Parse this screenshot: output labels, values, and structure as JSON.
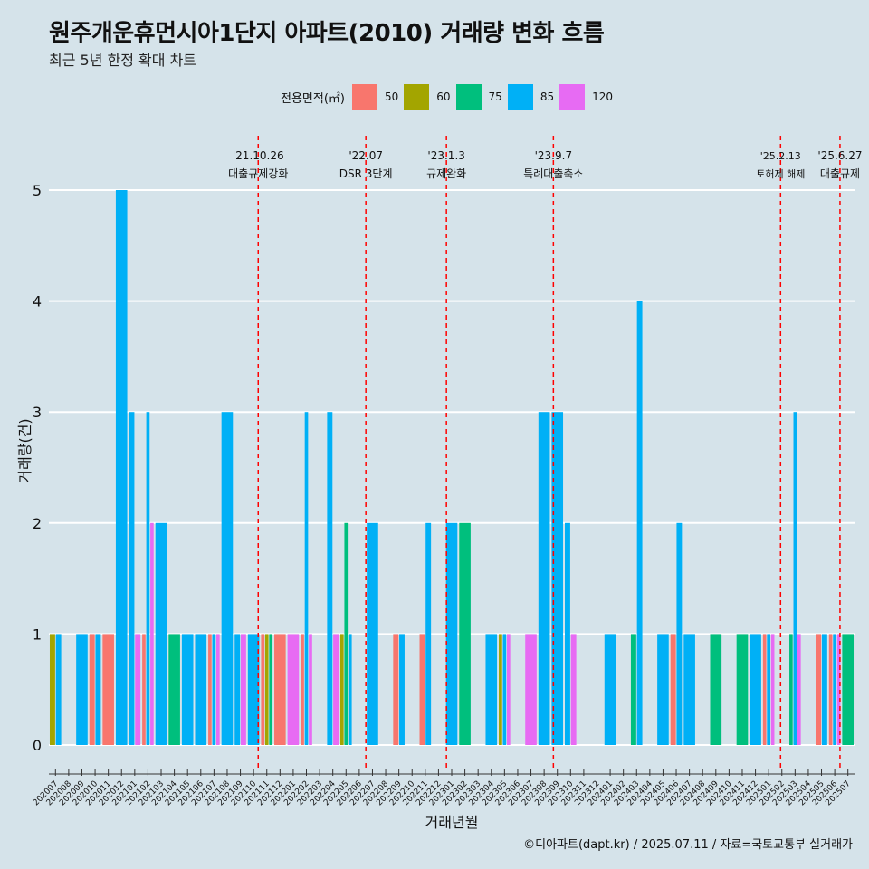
{
  "title": "원주개운휴먼시아1단지 아파트(2010) 거래량 변화 흐름",
  "subtitle": "최근 5년 한정 확대 차트",
  "caption": "©디아파트(dapt.kr) / 2025.07.11 / 자료=국토교통부 실거래가",
  "legend": {
    "title": "전용면적(㎡)",
    "items": [
      {
        "label": "50",
        "color": "#f8766d"
      },
      {
        "label": "60",
        "color": "#a3a500"
      },
      {
        "label": "75",
        "color": "#00bf7d"
      },
      {
        "label": "85",
        "color": "#00b0f6"
      },
      {
        "label": "120",
        "color": "#e76bf3"
      }
    ]
  },
  "chart_data": {
    "type": "bar",
    "title": "원주개운휴먼시아1단지 아파트(2010) 거래량 변화 흐름",
    "xlabel": "거래년월",
    "ylabel": "거래량(건)",
    "ylim": [
      0,
      5
    ],
    "yticks": [
      0,
      1,
      2,
      3,
      4,
      5
    ],
    "categories": [
      "202007",
      "202008",
      "202009",
      "202010",
      "202011",
      "202012",
      "202101",
      "202102",
      "202103",
      "202104",
      "202105",
      "202106",
      "202107",
      "202108",
      "202109",
      "202110",
      "202111",
      "202112",
      "202201",
      "202202",
      "202203",
      "202204",
      "202205",
      "202206",
      "202207",
      "202208",
      "202209",
      "202210",
      "202211",
      "202212",
      "202301",
      "202302",
      "202303",
      "202304",
      "202305",
      "202306",
      "202307",
      "202308",
      "202309",
      "202310",
      "202311",
      "202312",
      "202401",
      "202402",
      "202403",
      "202404",
      "202405",
      "202406",
      "202407",
      "202408",
      "202409",
      "202410",
      "202411",
      "202412",
      "202501",
      "202502",
      "202503",
      "202504",
      "202505",
      "202506",
      "202507"
    ],
    "bars": [
      {
        "month": "202007",
        "values": [
          {
            "area": "60",
            "count": 1
          },
          {
            "area": "85",
            "count": 1
          }
        ]
      },
      {
        "month": "202009",
        "values": [
          {
            "area": "85",
            "count": 1
          }
        ]
      },
      {
        "month": "202010",
        "values": [
          {
            "area": "50",
            "count": 1
          },
          {
            "area": "85",
            "count": 1
          }
        ]
      },
      {
        "month": "202011",
        "values": [
          {
            "area": "50",
            "count": 1
          }
        ]
      },
      {
        "month": "202012",
        "values": [
          {
            "area": "85",
            "count": 5
          }
        ]
      },
      {
        "month": "202101",
        "values": [
          {
            "area": "85",
            "count": 3
          },
          {
            "area": "120",
            "count": 1
          }
        ]
      },
      {
        "month": "202102",
        "values": [
          {
            "area": "50",
            "count": 1
          },
          {
            "area": "85",
            "count": 3
          },
          {
            "area": "120",
            "count": 2
          }
        ]
      },
      {
        "month": "202103",
        "values": [
          {
            "area": "85",
            "count": 2
          }
        ]
      },
      {
        "month": "202104",
        "values": [
          {
            "area": "75",
            "count": 1
          }
        ]
      },
      {
        "month": "202105",
        "values": [
          {
            "area": "85",
            "count": 1
          }
        ]
      },
      {
        "month": "202106",
        "values": [
          {
            "area": "85",
            "count": 1
          }
        ]
      },
      {
        "month": "202107",
        "values": [
          {
            "area": "50",
            "count": 1
          },
          {
            "area": "85",
            "count": 1
          },
          {
            "area": "120",
            "count": 1
          }
        ]
      },
      {
        "month": "202108",
        "values": [
          {
            "area": "85",
            "count": 3
          }
        ]
      },
      {
        "month": "202109",
        "values": [
          {
            "area": "85",
            "count": 1
          },
          {
            "area": "120",
            "count": 1
          }
        ]
      },
      {
        "month": "202110",
        "values": [
          {
            "area": "85",
            "count": 1
          }
        ]
      },
      {
        "month": "202111",
        "values": [
          {
            "area": "50",
            "count": 1
          },
          {
            "area": "60",
            "count": 1
          },
          {
            "area": "75",
            "count": 1
          }
        ]
      },
      {
        "month": "202112",
        "values": [
          {
            "area": "50",
            "count": 1
          }
        ]
      },
      {
        "month": "202201",
        "values": [
          {
            "area": "120",
            "count": 1
          }
        ]
      },
      {
        "month": "202202",
        "values": [
          {
            "area": "50",
            "count": 1
          },
          {
            "area": "85",
            "count": 3
          },
          {
            "area": "120",
            "count": 1
          }
        ]
      },
      {
        "month": "202204",
        "values": [
          {
            "area": "85",
            "count": 3
          },
          {
            "area": "120",
            "count": 1
          }
        ]
      },
      {
        "month": "202205",
        "values": [
          {
            "area": "60",
            "count": 1
          },
          {
            "area": "75",
            "count": 2
          },
          {
            "area": "85",
            "count": 1
          }
        ]
      },
      {
        "month": "202207",
        "values": [
          {
            "area": "85",
            "count": 2
          }
        ]
      },
      {
        "month": "202209",
        "values": [
          {
            "area": "50",
            "count": 1
          },
          {
            "area": "85",
            "count": 1
          }
        ]
      },
      {
        "month": "202211",
        "values": [
          {
            "area": "50",
            "count": 1
          },
          {
            "area": "85",
            "count": 2
          }
        ]
      },
      {
        "month": "202301",
        "values": [
          {
            "area": "85",
            "count": 2
          }
        ]
      },
      {
        "month": "202302",
        "values": [
          {
            "area": "75",
            "count": 2
          }
        ]
      },
      {
        "month": "202304",
        "values": [
          {
            "area": "85",
            "count": 1
          }
        ]
      },
      {
        "month": "202305",
        "values": [
          {
            "area": "60",
            "count": 1
          },
          {
            "area": "85",
            "count": 1
          },
          {
            "area": "120",
            "count": 1
          }
        ]
      },
      {
        "month": "202307",
        "values": [
          {
            "area": "120",
            "count": 1
          }
        ]
      },
      {
        "month": "202308",
        "values": [
          {
            "area": "85",
            "count": 3
          }
        ]
      },
      {
        "month": "202309",
        "values": [
          {
            "area": "85",
            "count": 3
          }
        ]
      },
      {
        "month": "202310",
        "values": [
          {
            "area": "85",
            "count": 2
          },
          {
            "area": "120",
            "count": 1
          }
        ]
      },
      {
        "month": "202401",
        "values": [
          {
            "area": "85",
            "count": 1
          }
        ]
      },
      {
        "month": "202403",
        "values": [
          {
            "area": "75",
            "count": 1
          },
          {
            "area": "85",
            "count": 4
          }
        ]
      },
      {
        "month": "202405",
        "values": [
          {
            "area": "85",
            "count": 1
          }
        ]
      },
      {
        "month": "202406",
        "values": [
          {
            "area": "50",
            "count": 1
          },
          {
            "area": "85",
            "count": 2
          }
        ]
      },
      {
        "month": "202407",
        "values": [
          {
            "area": "85",
            "count": 1
          }
        ]
      },
      {
        "month": "202409",
        "values": [
          {
            "area": "75",
            "count": 1
          }
        ]
      },
      {
        "month": "202411",
        "values": [
          {
            "area": "75",
            "count": 1
          }
        ]
      },
      {
        "month": "202412",
        "values": [
          {
            "area": "85",
            "count": 1
          }
        ]
      },
      {
        "month": "202501",
        "values": [
          {
            "area": "50",
            "count": 1
          },
          {
            "area": "85",
            "count": 1
          },
          {
            "area": "120",
            "count": 1
          }
        ]
      },
      {
        "month": "202503",
        "values": [
          {
            "area": "75",
            "count": 1
          },
          {
            "area": "85",
            "count": 3
          },
          {
            "area": "120",
            "count": 1
          }
        ]
      },
      {
        "month": "202505",
        "values": [
          {
            "area": "50",
            "count": 1
          },
          {
            "area": "85",
            "count": 1
          }
        ]
      },
      {
        "month": "202506",
        "values": [
          {
            "area": "50",
            "count": 1
          },
          {
            "area": "85",
            "count": 1
          },
          {
            "area": "120",
            "count": 1
          }
        ]
      },
      {
        "month": "202507",
        "values": [
          {
            "area": "75",
            "count": 1
          }
        ]
      }
    ],
    "events": [
      {
        "date": "'21.10.26",
        "label": "대출규제강화",
        "month": "202110",
        "frac": 0.85
      },
      {
        "date": "'22.07",
        "label": "DSR 3단계",
        "month": "202207",
        "frac": 0.0
      },
      {
        "date": "'23.1.3",
        "label": "규제완화",
        "month": "202301",
        "frac": 0.1
      },
      {
        "date": "'23.9.7",
        "label": "특례대출축소",
        "month": "202309",
        "frac": 0.2
      },
      {
        "date": "'25.2.13",
        "label": "토허제 해제",
        "month": "202502",
        "frac": 0.4
      },
      {
        "date": "'25.6.27",
        "label": "대출규제",
        "month": "202506",
        "frac": 0.9
      }
    ]
  }
}
